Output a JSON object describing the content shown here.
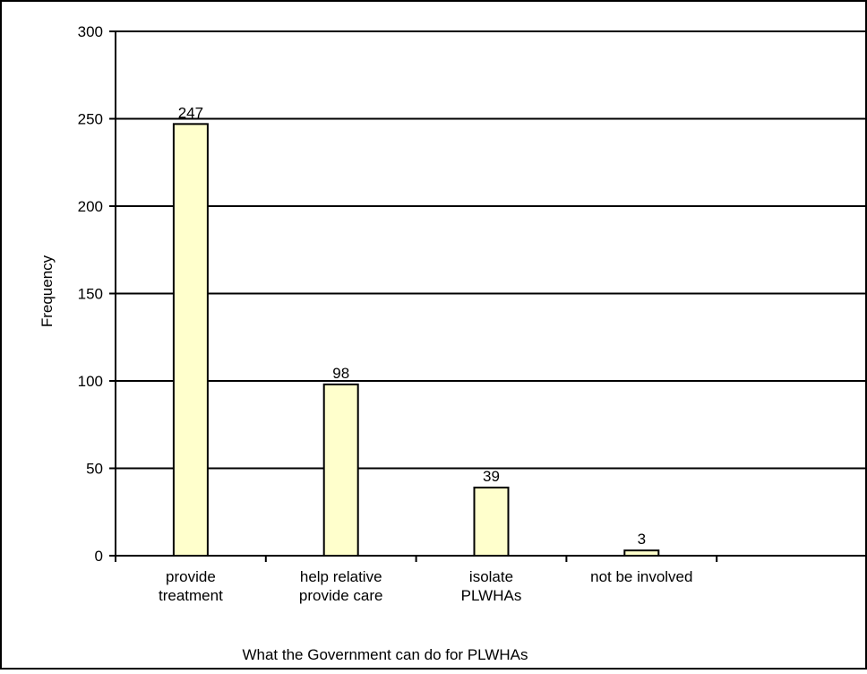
{
  "chart_data": {
    "type": "bar",
    "title": "",
    "xlabel": "What the Government can do for PLWHAs",
    "ylabel": "Frequency",
    "categories": [
      [
        "provide",
        "treatment"
      ],
      [
        "help relative",
        "provide care"
      ],
      [
        "isolate",
        "PLWHAs"
      ],
      [
        "not be involved"
      ]
    ],
    "values": [
      247,
      98,
      39,
      3
    ],
    "data_labels": [
      "247",
      "98",
      "39",
      "3"
    ],
    "ylim": [
      0,
      300
    ],
    "yticks": [
      0,
      50,
      100,
      150,
      200,
      250,
      300
    ],
    "ytick_labels": [
      "0",
      "50",
      "100",
      "150",
      "200",
      "250",
      "300"
    ],
    "grid": true,
    "legend": "none",
    "colors": {
      "bar_fill": "#ffffcc",
      "bar_stroke": "#000000",
      "grid": "#000000",
      "background": "#ffffff"
    }
  }
}
